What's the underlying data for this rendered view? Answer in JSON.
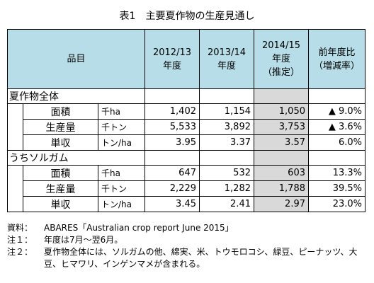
{
  "title": "表1　主要夏作物の生産見通し",
  "table": {
    "header": {
      "item": "品目",
      "c1": [
        "2012/13",
        "年度"
      ],
      "c2": [
        "2013/14",
        "年度"
      ],
      "c3": [
        "2014/15",
        "年度",
        "（推定）"
      ],
      "c4": [
        "前年度比",
        "（増減率）"
      ]
    },
    "sections": [
      {
        "name": "夏作物全体",
        "rows": [
          {
            "label": "面積",
            "unit": "千ha",
            "v1": "1,402",
            "v2": "1,154",
            "v3": "1,050",
            "v4": "▲ 9.0%"
          },
          {
            "label": "生産量",
            "unit": "千トン",
            "v1": "5,533",
            "v2": "3,892",
            "v3": "3,753",
            "v4": "▲ 3.6%"
          },
          {
            "label": "単収",
            "unit": "トン/ha",
            "v1": "3.95",
            "v2": "3.37",
            "v3": "3.57",
            "v4": "6.0%"
          }
        ]
      },
      {
        "name": "うちソルガム",
        "rows": [
          {
            "label": "面積",
            "unit": "千ha",
            "v1": "647",
            "v2": "532",
            "v3": "603",
            "v4": "13.3%"
          },
          {
            "label": "生産量",
            "unit": "千トン",
            "v1": "2,229",
            "v2": "1,282",
            "v3": "1,788",
            "v4": "39.5%"
          },
          {
            "label": "単収",
            "unit": "トン/ha",
            "v1": "3.45",
            "v2": "2.41",
            "v3": "2.97",
            "v4": "23.0%"
          }
        ]
      }
    ]
  },
  "notes": [
    {
      "key": "資料：",
      "text": "ABARES「Australian crop report June 2015」"
    },
    {
      "key": "注１：",
      "text": "年度は7月～翌6月。"
    },
    {
      "key": "注２：",
      "text": "夏作物全体には、ソルガムの他、綿実、米、トウモロコシ、緑豆、ピーナッツ、大豆、ヒマワリ、インゲンマメが含まれる。"
    }
  ]
}
